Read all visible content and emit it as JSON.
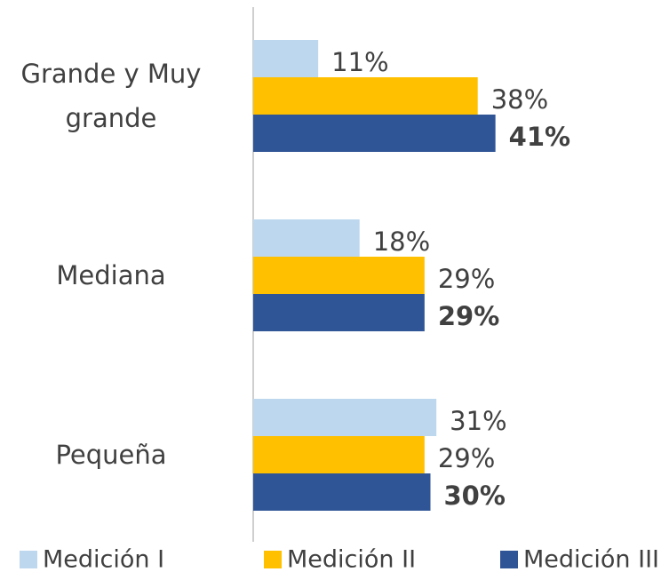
{
  "chart_data": {
    "type": "bar",
    "orientation": "horizontal",
    "categories": [
      "Grande y Muy grande",
      "Mediana",
      "Pequeña"
    ],
    "series": [
      {
        "name": "Medición I",
        "color": "#bdd7ee",
        "values": [
          11,
          18,
          31
        ],
        "value_labels": [
          "11%",
          "18%",
          "31%"
        ]
      },
      {
        "name": "Medición II",
        "color": "#ffc000",
        "values": [
          38,
          29,
          29
        ],
        "value_labels": [
          "38%",
          "29%",
          "29%"
        ]
      },
      {
        "name": "Medición III",
        "color": "#2f5597",
        "values": [
          41,
          29,
          30
        ],
        "value_labels": [
          "41%",
          "29%",
          "30%"
        ],
        "bold_labels": true
      }
    ],
    "legend": "bottom"
  }
}
